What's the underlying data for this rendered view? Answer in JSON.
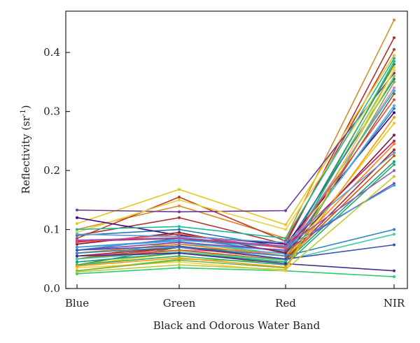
{
  "chart_data": {
    "type": "line",
    "title": "",
    "xlabel": "Black and Odorous Water Band",
    "ylabel_main": "Reflectivity (sr",
    "ylabel_sup": "-1",
    "ylabel_close": ")",
    "categories": [
      "Blue",
      "Green",
      "Red",
      "NIR"
    ],
    "ylim": [
      0,
      0.47
    ],
    "yticks": [
      0.0,
      0.1,
      0.2,
      0.3,
      0.4
    ],
    "ytick_labels": [
      "0.0",
      "0.1",
      "0.2",
      "0.3",
      "0.4"
    ],
    "grid": false,
    "legend": "none",
    "series": [
      {
        "color": "#d98a2a",
        "values": [
          0.1,
          0.14,
          0.085,
          0.455
        ]
      },
      {
        "color": "#c0392b",
        "values": [
          0.085,
          0.155,
          0.08,
          0.405
        ]
      },
      {
        "color": "#b03030",
        "values": [
          0.09,
          0.12,
          0.075,
          0.425
        ]
      },
      {
        "color": "#e8c41f",
        "values": [
          0.11,
          0.168,
          0.108,
          0.395
        ]
      },
      {
        "color": "#6a3d9a",
        "values": [
          0.133,
          0.13,
          0.132,
          0.365
        ]
      },
      {
        "color": "#e6d23a",
        "values": [
          0.095,
          0.15,
          0.1,
          0.375
        ]
      },
      {
        "color": "#2e8b57",
        "values": [
          0.04,
          0.07,
          0.06,
          0.38
        ]
      },
      {
        "color": "#8bc34a",
        "values": [
          0.05,
          0.08,
          0.055,
          0.37
        ]
      },
      {
        "color": "#3cb371",
        "values": [
          0.045,
          0.06,
          0.05,
          0.385
        ]
      },
      {
        "color": "#1f77b4",
        "values": [
          0.09,
          0.1,
          0.07,
          0.355
        ]
      },
      {
        "color": "#17becf",
        "values": [
          0.06,
          0.075,
          0.065,
          0.335
        ]
      },
      {
        "color": "#9acd32",
        "values": [
          0.03,
          0.05,
          0.045,
          0.36
        ]
      },
      {
        "color": "#e377c2",
        "values": [
          0.055,
          0.065,
          0.06,
          0.34
        ]
      },
      {
        "color": "#4b0082",
        "values": [
          0.12,
          0.09,
          0.075,
          0.298
        ]
      },
      {
        "color": "#2980b9",
        "values": [
          0.065,
          0.085,
          0.062,
          0.305
        ]
      },
      {
        "color": "#5dade2",
        "values": [
          0.07,
          0.08,
          0.058,
          0.31
        ]
      },
      {
        "color": "#a0522d",
        "values": [
          0.05,
          0.07,
          0.05,
          0.33
        ]
      },
      {
        "color": "#f1c40f",
        "values": [
          0.04,
          0.06,
          0.048,
          0.28
        ]
      },
      {
        "color": "#7b1f3a",
        "values": [
          0.075,
          0.095,
          0.06,
          0.26
        ]
      },
      {
        "color": "#c2185b",
        "values": [
          0.08,
          0.085,
          0.07,
          0.25
        ]
      },
      {
        "color": "#ff7f0e",
        "values": [
          0.06,
          0.075,
          0.055,
          0.245
        ]
      },
      {
        "color": "#b22222",
        "values": [
          0.055,
          0.07,
          0.05,
          0.235
        ]
      },
      {
        "color": "#d35400",
        "values": [
          0.05,
          0.065,
          0.048,
          0.225
        ]
      },
      {
        "color": "#16a085",
        "values": [
          0.045,
          0.06,
          0.045,
          0.215
        ]
      },
      {
        "color": "#27ae60",
        "values": [
          0.04,
          0.055,
          0.04,
          0.21
        ]
      },
      {
        "color": "#8e44ad",
        "values": [
          0.065,
          0.078,
          0.065,
          0.178
        ]
      },
      {
        "color": "#3498db",
        "values": [
          0.07,
          0.082,
          0.07,
          0.175
        ]
      },
      {
        "color": "#2e86c1",
        "values": [
          0.06,
          0.07,
          0.055,
          0.1
        ]
      },
      {
        "color": "#48c9b0",
        "values": [
          0.05,
          0.062,
          0.048,
          0.092
        ]
      },
      {
        "color": "#3f51b5",
        "values": [
          0.065,
          0.072,
          0.05,
          0.074
        ]
      },
      {
        "color": "#4a2c8a",
        "values": [
          0.055,
          0.06,
          0.042,
          0.03
        ]
      },
      {
        "color": "#2ecc71",
        "values": [
          0.025,
          0.035,
          0.03,
          0.02
        ]
      },
      {
        "color": "#1abc9c",
        "values": [
          0.1,
          0.105,
          0.085,
          0.39
        ]
      },
      {
        "color": "#f4d03f",
        "values": [
          0.035,
          0.045,
          0.03,
          0.37
        ]
      },
      {
        "color": "#76b041",
        "values": [
          0.03,
          0.048,
          0.035,
          0.35
        ]
      },
      {
        "color": "#e74c3c",
        "values": [
          0.078,
          0.092,
          0.068,
          0.32
        ]
      },
      {
        "color": "#f39c12",
        "values": [
          0.038,
          0.052,
          0.036,
          0.29
        ]
      },
      {
        "color": "#5b9bd5",
        "values": [
          0.092,
          0.088,
          0.078,
          0.23
        ]
      },
      {
        "color": "#9b59b6",
        "values": [
          0.082,
          0.086,
          0.072,
          0.2
        ]
      },
      {
        "color": "#c0ca33",
        "values": [
          0.028,
          0.04,
          0.032,
          0.19
        ]
      }
    ]
  }
}
